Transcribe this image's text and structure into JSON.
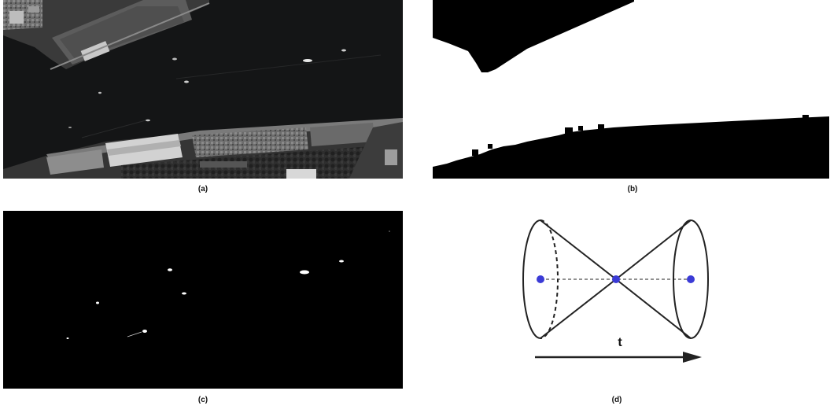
{
  "panels": [
    {
      "id": "a",
      "caption": "(a)",
      "content": "grayscale satellite image of river harbor"
    },
    {
      "id": "b",
      "caption": "(b)",
      "content": "binary land/water mask"
    },
    {
      "id": "c",
      "caption": "(c)",
      "content": "binary ship detection mask"
    },
    {
      "id": "d",
      "caption": "(d)",
      "content": "double cone diagram"
    }
  ],
  "diagram": {
    "axis_label": "t",
    "point_color": "#3b3bd6"
  }
}
